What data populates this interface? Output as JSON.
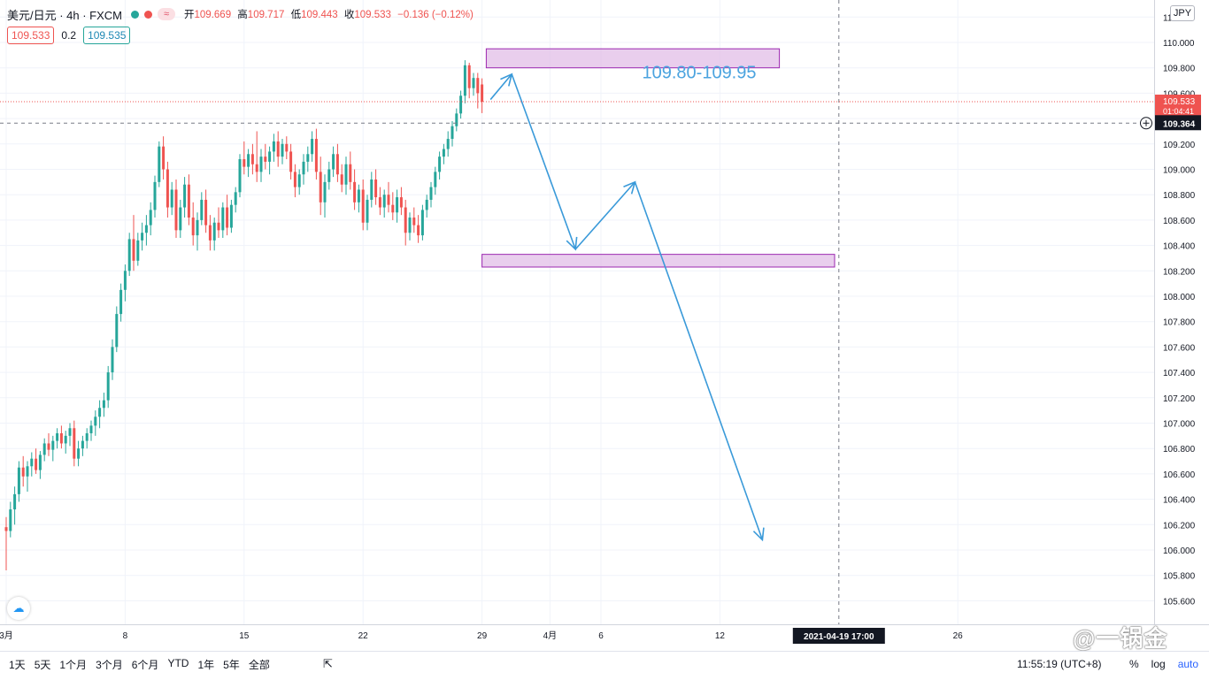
{
  "header": {
    "symbol": "美元/日元 · 4h · FXCM",
    "dot_colors": [
      "#26a69a",
      "#ef5350"
    ],
    "wave_icon": "≈",
    "ohlc": [
      {
        "label": "开",
        "value": "109.669"
      },
      {
        "label": "高",
        "value": "109.717"
      },
      {
        "label": "低",
        "value": "109.443"
      },
      {
        "label": "收",
        "value": "109.533"
      }
    ],
    "change": "−0.136 (−0.12%)",
    "bid": "109.533",
    "spread": "0.2",
    "ask": "109.535",
    "currency": "JPY"
  },
  "bottom": {
    "ranges": [
      "1天",
      "5天",
      "1个月",
      "3个月",
      "6个月",
      "YTD",
      "1年",
      "5年",
      "全部"
    ],
    "range_icon": "calendar-range-icon",
    "clock": "11:55:19 (UTC+8)",
    "pct": "%",
    "log": "log",
    "auto": "auto"
  },
  "watermark": "@一锅金",
  "chart_data": {
    "type": "candlestick",
    "symbol": "USDJPY",
    "interval": "4h",
    "y_axis": {
      "ticks": [
        105.6,
        105.8,
        106.0,
        106.2,
        106.4,
        106.6,
        106.8,
        107.0,
        107.2,
        107.4,
        107.6,
        107.8,
        108.0,
        108.2,
        108.4,
        108.6,
        108.8,
        109.0,
        109.2,
        109.4,
        109.6,
        109.8,
        110.0,
        110.2
      ],
      "tick_labels": [
        "105.600",
        "105.800",
        "106.000",
        "106.200",
        "106.400",
        "106.600",
        "106.800",
        "107.000",
        "107.200",
        "107.400",
        "107.600",
        "107.800",
        "108.000",
        "108.200",
        "108.400",
        "108.600",
        "108.800",
        "109.000",
        "109.200",
        "109.400",
        "109.600",
        "109.800",
        "110.000",
        "110.200"
      ],
      "range": [
        105.5,
        110.25
      ]
    },
    "x_axis": {
      "labels": [
        {
          "label": "3月",
          "idx": 0
        },
        {
          "label": "8",
          "idx": 28
        },
        {
          "label": "15",
          "idx": 56
        },
        {
          "label": "22",
          "idx": 84
        },
        {
          "label": "29",
          "idx": 112
        },
        {
          "label": "4月",
          "idx": 128
        },
        {
          "label": "6",
          "idx": 140
        },
        {
          "label": "12",
          "idx": 168
        },
        {
          "label": "26",
          "idx": 224
        }
      ],
      "crosshair_label": "2021-04-19   17:00",
      "crosshair_idx": 196
    },
    "last_price": {
      "label": "109.533",
      "countdown": "01:04:41",
      "value": 109.533,
      "color": "#ef5350"
    },
    "crosshair_price": {
      "label": "109.364",
      "value": 109.364
    },
    "zones": [
      {
        "label": "109.80-109.95",
        "from_idx": 113,
        "to_idx": 182,
        "low": 109.8,
        "high": 109.95,
        "color": "#e1bee7"
      },
      {
        "from_idx": 112,
        "to_idx": 195,
        "low": 108.23,
        "high": 108.33,
        "color": "#e1bee7"
      }
    ],
    "projection": {
      "color": "#3a9ad9",
      "points": [
        {
          "idx": 114,
          "price": 109.55
        },
        {
          "idx": 119,
          "price": 109.75
        },
        {
          "idx": 134,
          "price": 108.37
        },
        {
          "idx": 148,
          "price": 108.9
        },
        {
          "idx": 178,
          "price": 106.08
        }
      ]
    },
    "candles": [
      [
        106.18,
        106.26,
        105.84,
        106.15
      ],
      [
        106.15,
        106.38,
        106.1,
        106.32
      ],
      [
        106.32,
        106.5,
        106.2,
        106.44
      ],
      [
        106.44,
        106.7,
        106.38,
        106.65
      ],
      [
        106.65,
        106.74,
        106.5,
        106.58
      ],
      [
        106.58,
        106.7,
        106.46,
        106.66
      ],
      [
        106.66,
        106.77,
        106.58,
        106.72
      ],
      [
        106.72,
        106.8,
        106.6,
        106.63
      ],
      [
        106.63,
        106.78,
        106.56,
        106.75
      ],
      [
        106.75,
        106.88,
        106.7,
        106.84
      ],
      [
        106.84,
        106.92,
        106.74,
        106.79
      ],
      [
        106.79,
        106.9,
        106.7,
        106.86
      ],
      [
        106.86,
        106.96,
        106.8,
        106.92
      ],
      [
        106.92,
        106.98,
        106.8,
        106.84
      ],
      [
        106.84,
        106.94,
        106.76,
        106.9
      ],
      [
        106.9,
        107.0,
        106.82,
        106.96
      ],
      [
        106.96,
        107.02,
        106.66,
        106.72
      ],
      [
        106.72,
        106.86,
        106.66,
        106.8
      ],
      [
        106.8,
        106.9,
        106.74,
        106.86
      ],
      [
        106.86,
        106.96,
        106.8,
        106.92
      ],
      [
        106.92,
        107.02,
        106.86,
        106.98
      ],
      [
        106.98,
        107.1,
        106.9,
        107.05
      ],
      [
        107.05,
        107.18,
        106.96,
        107.12
      ],
      [
        107.12,
        107.24,
        107.05,
        107.18
      ],
      [
        107.18,
        107.45,
        107.12,
        107.4
      ],
      [
        107.4,
        107.66,
        107.34,
        107.6
      ],
      [
        107.6,
        107.92,
        107.56,
        107.86
      ],
      [
        107.86,
        108.1,
        107.8,
        108.05
      ],
      [
        108.05,
        108.25,
        107.96,
        108.2
      ],
      [
        108.2,
        108.5,
        108.16,
        108.45
      ],
      [
        108.45,
        108.64,
        108.2,
        108.28
      ],
      [
        108.28,
        108.5,
        108.24,
        108.44
      ],
      [
        108.44,
        108.58,
        108.36,
        108.5
      ],
      [
        108.5,
        108.64,
        108.4,
        108.56
      ],
      [
        108.56,
        108.74,
        108.48,
        108.68
      ],
      [
        108.68,
        108.95,
        108.62,
        108.9
      ],
      [
        108.9,
        109.22,
        108.86,
        109.18
      ],
      [
        109.18,
        109.26,
        108.92,
        109.0
      ],
      [
        109.0,
        109.06,
        108.62,
        108.7
      ],
      [
        108.7,
        108.9,
        108.64,
        108.84
      ],
      [
        108.84,
        108.92,
        108.46,
        108.52
      ],
      [
        108.52,
        108.76,
        108.46,
        108.7
      ],
      [
        108.7,
        108.94,
        108.62,
        108.88
      ],
      [
        108.88,
        108.96,
        108.56,
        108.62
      ],
      [
        108.62,
        108.74,
        108.4,
        108.48
      ],
      [
        108.48,
        108.66,
        108.36,
        108.6
      ],
      [
        108.6,
        108.82,
        108.56,
        108.76
      ],
      [
        108.76,
        108.84,
        108.5,
        108.56
      ],
      [
        108.56,
        108.64,
        108.36,
        108.44
      ],
      [
        108.44,
        108.62,
        108.36,
        108.58
      ],
      [
        108.58,
        108.7,
        108.46,
        108.52
      ],
      [
        108.52,
        108.74,
        108.46,
        108.7
      ],
      [
        108.7,
        108.8,
        108.48,
        108.54
      ],
      [
        108.54,
        108.76,
        108.5,
        108.72
      ],
      [
        108.72,
        108.86,
        108.66,
        108.82
      ],
      [
        108.82,
        109.12,
        108.78,
        109.08
      ],
      [
        109.08,
        109.22,
        108.96,
        109.02
      ],
      [
        109.02,
        109.16,
        108.94,
        109.12
      ],
      [
        109.12,
        109.2,
        108.96,
        109.04
      ],
      [
        109.04,
        109.3,
        108.9,
        108.98
      ],
      [
        108.98,
        109.16,
        108.9,
        109.1
      ],
      [
        109.1,
        109.2,
        109.0,
        109.06
      ],
      [
        109.06,
        109.18,
        108.96,
        109.14
      ],
      [
        109.14,
        109.28,
        109.06,
        109.22
      ],
      [
        109.22,
        109.3,
        109.02,
        109.1
      ],
      [
        109.1,
        109.24,
        109.04,
        109.2
      ],
      [
        109.2,
        109.26,
        109.08,
        109.14
      ],
      [
        109.14,
        109.2,
        108.92,
        108.98
      ],
      [
        108.98,
        109.04,
        108.78,
        108.86
      ],
      [
        108.86,
        109.0,
        108.8,
        108.96
      ],
      [
        108.96,
        109.12,
        108.88,
        109.06
      ],
      [
        109.06,
        109.18,
        108.98,
        109.12
      ],
      [
        109.12,
        109.3,
        109.06,
        109.24
      ],
      [
        109.24,
        109.32,
        108.92,
        108.98
      ],
      [
        108.98,
        109.1,
        108.64,
        108.74
      ],
      [
        108.74,
        108.96,
        108.62,
        108.9
      ],
      [
        108.9,
        109.06,
        108.84,
        109.0
      ],
      [
        109.0,
        109.18,
        108.94,
        109.12
      ],
      [
        109.12,
        109.2,
        108.9,
        108.96
      ],
      [
        108.96,
        109.04,
        108.82,
        108.88
      ],
      [
        108.88,
        109.1,
        108.8,
        109.04
      ],
      [
        109.04,
        109.14,
        108.84,
        108.9
      ],
      [
        108.9,
        109.0,
        108.68,
        108.74
      ],
      [
        108.74,
        108.88,
        108.66,
        108.84
      ],
      [
        108.84,
        108.92,
        108.52,
        108.58
      ],
      [
        108.58,
        108.8,
        108.52,
        108.76
      ],
      [
        108.76,
        108.98,
        108.7,
        108.92
      ],
      [
        108.92,
        109.0,
        108.72,
        108.78
      ],
      [
        108.78,
        108.86,
        108.64,
        108.7
      ],
      [
        108.7,
        108.84,
        108.62,
        108.8
      ],
      [
        108.8,
        108.9,
        108.66,
        108.72
      ],
      [
        108.72,
        108.82,
        108.6,
        108.66
      ],
      [
        108.66,
        108.84,
        108.58,
        108.78
      ],
      [
        108.78,
        108.86,
        108.64,
        108.7
      ],
      [
        108.7,
        108.76,
        108.4,
        108.5
      ],
      [
        108.5,
        108.66,
        108.44,
        108.62
      ],
      [
        108.62,
        108.7,
        108.5,
        108.56
      ],
      [
        108.56,
        108.64,
        108.42,
        108.48
      ],
      [
        108.48,
        108.72,
        108.44,
        108.68
      ],
      [
        108.68,
        108.8,
        108.62,
        108.76
      ],
      [
        108.76,
        108.9,
        108.7,
        108.86
      ],
      [
        108.86,
        109.02,
        108.8,
        108.98
      ],
      [
        108.98,
        109.14,
        108.92,
        109.1
      ],
      [
        109.1,
        109.2,
        109.04,
        109.16
      ],
      [
        109.16,
        109.3,
        109.1,
        109.24
      ],
      [
        109.24,
        109.38,
        109.18,
        109.34
      ],
      [
        109.34,
        109.48,
        109.3,
        109.44
      ],
      [
        109.44,
        109.62,
        109.4,
        109.58
      ],
      [
        109.58,
        109.86,
        109.52,
        109.82
      ],
      [
        109.82,
        109.84,
        109.56,
        109.64
      ],
      [
        109.64,
        109.76,
        109.58,
        109.72
      ],
      [
        109.72,
        109.76,
        109.48,
        109.6
      ],
      [
        109.669,
        109.717,
        109.443,
        109.533
      ]
    ]
  }
}
